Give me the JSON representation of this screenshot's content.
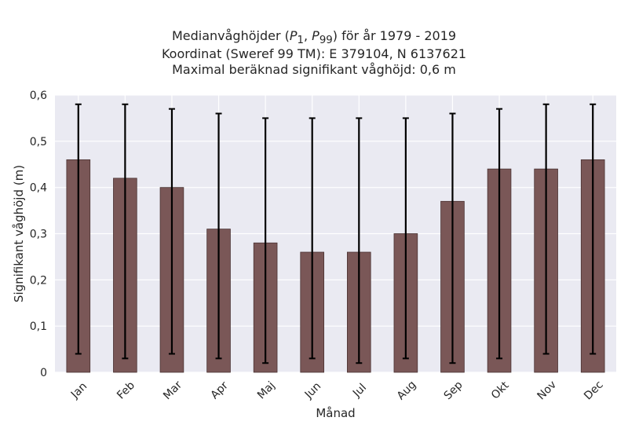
{
  "chart_data": {
    "type": "bar",
    "title_lines": [
      "Medianvåghöjder (P1, P99) för år 1979 - 2019",
      "Koordinat (Sweref 99 TM): E 379104, N 6137621",
      "Maximal beräknad signifikant våghöjd: 0,6 m"
    ],
    "xlabel": "Månad",
    "ylabel": "Signifikant våghöjd (m)",
    "categories": [
      "Jan",
      "Feb",
      "Mar",
      "Apr",
      "Maj",
      "Jun",
      "Jul",
      "Aug",
      "Sep",
      "Okt",
      "Nov",
      "Dec"
    ],
    "series": [
      {
        "values": [
          0.46,
          0.42,
          0.4,
          0.31,
          0.28,
          0.26,
          0.26,
          0.3,
          0.37,
          0.44,
          0.44,
          0.46
        ],
        "lower": [
          0.04,
          0.03,
          0.04,
          0.03,
          0.02,
          0.03,
          0.02,
          0.03,
          0.02,
          0.03,
          0.04,
          0.04
        ],
        "upper": [
          0.58,
          0.58,
          0.57,
          0.56,
          0.55,
          0.55,
          0.55,
          0.55,
          0.56,
          0.57,
          0.58,
          0.58
        ]
      }
    ],
    "ylim": [
      0,
      0.6
    ],
    "yticks": [
      0,
      0.1,
      0.2,
      0.3,
      0.4,
      0.5,
      0.6
    ],
    "ytick_labels": [
      "0",
      "0,1",
      "0,2",
      "0,3",
      "0,4",
      "0,5",
      "0,6"
    ],
    "grid": true,
    "colors": {
      "bar": "#7a5757",
      "bar_edge": "#4a3333",
      "error": "#000000",
      "plot_bg": "#eaeaf2",
      "grid": "#ffffff"
    }
  }
}
